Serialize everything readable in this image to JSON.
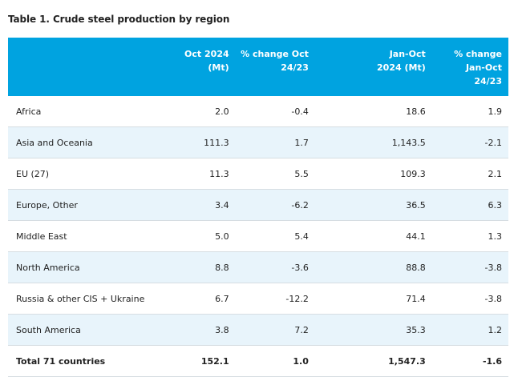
{
  "title": "Table 1. Crude steel production by region",
  "columns": {
    "col1_line1": "Oct 2024",
    "col1_line2": "(Mt)",
    "col2_line1": "% change Oct",
    "col2_line2": "24/23",
    "col3_line1": "Jan-Oct",
    "col3_line2": "2024 (Mt)",
    "col4_line1": "% change",
    "col4_line2": "Jan-Oct",
    "col4_line3": "24/23"
  },
  "rows": [
    {
      "region": "Africa",
      "oct": "2.0",
      "chg_oct": "-0.4",
      "janoct": "18.6",
      "chg_janoct": "1.9"
    },
    {
      "region": "Asia and Oceania",
      "oct": "111.3",
      "chg_oct": "1.7",
      "janoct": "1,143.5",
      "chg_janoct": "-2.1"
    },
    {
      "region": "EU (27)",
      "oct": "11.3",
      "chg_oct": "5.5",
      "janoct": "109.3",
      "chg_janoct": "2.1"
    },
    {
      "region": "Europe, Other",
      "oct": "3.4",
      "chg_oct": "-6.2",
      "janoct": "36.5",
      "chg_janoct": "6.3"
    },
    {
      "region": "Middle East",
      "oct": "5.0",
      "chg_oct": "5.4",
      "janoct": "44.1",
      "chg_janoct": "1.3"
    },
    {
      "region": "North America",
      "oct": "8.8",
      "chg_oct": "-3.6",
      "janoct": "88.8",
      "chg_janoct": "-3.8"
    },
    {
      "region": "Russia & other CIS + Ukraine",
      "oct": "6.7",
      "chg_oct": "-12.2",
      "janoct": "71.4",
      "chg_janoct": "-3.8"
    },
    {
      "region": "South America",
      "oct": "3.8",
      "chg_oct": "7.2",
      "janoct": "35.3",
      "chg_janoct": "1.2"
    },
    {
      "region": "Total 71 countries",
      "oct": "152.1",
      "chg_oct": "1.0",
      "janoct": "1,547.3",
      "chg_janoct": "-1.6"
    }
  ],
  "colors": {
    "header_bg": "#00a3e0",
    "alt_row_bg": "#e8f4fb"
  }
}
